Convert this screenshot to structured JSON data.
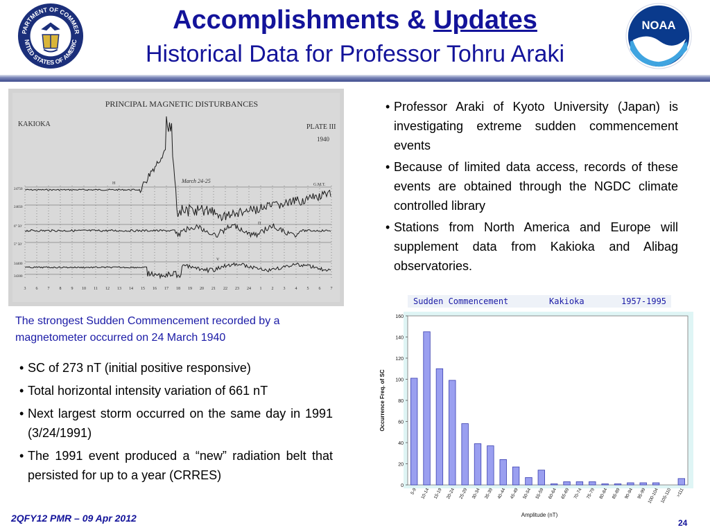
{
  "header": {
    "title_prefix": "Accomplishments & ",
    "title_underlined": "Updates",
    "subtitle": "Historical Data for Professor Tohru Araki",
    "left_logo": {
      "icon": "department-of-commerce-seal-icon",
      "ring_text": "DEPARTMENT OF COMMERCE · UNITED STATES OF AMERICA"
    },
    "right_logo": {
      "icon": "noaa-logo-icon",
      "text": "NOAA"
    }
  },
  "magnetogram": {
    "icon": "magnetogram-plate-image",
    "heading": "PRINCIPAL MAGNETIC DISTURBANCES",
    "station": "KAKIOKA",
    "plate": "PLATE III",
    "year": "1940",
    "date_label": "March 24-25",
    "time_label": "G.M.T.",
    "trace_labels": [
      "H",
      "D",
      "V"
    ],
    "scale_labels": [
      "24750",
      "24650",
      "6° 50'",
      "5° 50'",
      "34400",
      "34300"
    ],
    "hour_ticks": [
      "3",
      "6",
      "7",
      "8",
      "9",
      "10",
      "11",
      "12",
      "13",
      "14",
      "15",
      "16",
      "17",
      "18",
      "19",
      "20",
      "21",
      "22",
      "23",
      "24",
      "1",
      "2",
      "3",
      "4",
      "5",
      "6",
      "7"
    ]
  },
  "caption": "The strongest Sudden Commencement recorded by a magnetometer occurred on 24 March 1940",
  "left_bullets": [
    "SC of 273 nT (initial positive responsive)",
    "Total horizontal intensity variation of 661 nT",
    "Next largest storm occurred on the same day in 1991 (3/24/1991)",
    "The 1991 event produced a “new” radiation belt that persisted for up to a year (CRRES)"
  ],
  "right_bullets": [
    "Professor Araki of Kyoto University (Japan) is investigating extreme sudden commencement events",
    "Because of limited data access, records of these events are obtained through the NGDC climate controlled library",
    "Stations from North America and Europe will supplement data from Kakioka and Alibag observatories."
  ],
  "chart_data": {
    "type": "bar",
    "title": "Sudden Commencement",
    "station": "Kakioka",
    "period": "1957-1995",
    "xlabel": "Amplitude (nT)",
    "ylabel": "Occurrence Freq. of SC",
    "ylim": [
      0,
      160
    ],
    "yticks": [
      0,
      20,
      40,
      60,
      80,
      100,
      120,
      140,
      160
    ],
    "grid": false,
    "categories": [
      "5-9",
      "10-14",
      "15-19",
      "20-24",
      "25-29",
      "30-34",
      "35-39",
      "40-44",
      "45-49",
      "50-54",
      "55-59",
      "60-64",
      "65-69",
      "70-74",
      "75-79",
      "80-84",
      "85-89",
      "90-94",
      "95-99",
      "100-104",
      "105-110",
      ">111"
    ],
    "values": [
      101,
      145,
      110,
      99,
      58,
      39,
      37,
      24,
      17,
      7,
      14,
      1,
      3,
      3,
      3,
      1,
      1,
      2,
      2,
      2,
      0,
      6
    ],
    "colors": {
      "bar_fill": "#9a9ff0",
      "bar_stroke": "#3a3fb0",
      "plot_bg": "#ffffff",
      "panel_bg": "#dff5f5",
      "title_band": "#eef2f8"
    }
  },
  "footer": {
    "left": "2QFY12 PMR – 09 Apr 2012",
    "page": "24"
  }
}
